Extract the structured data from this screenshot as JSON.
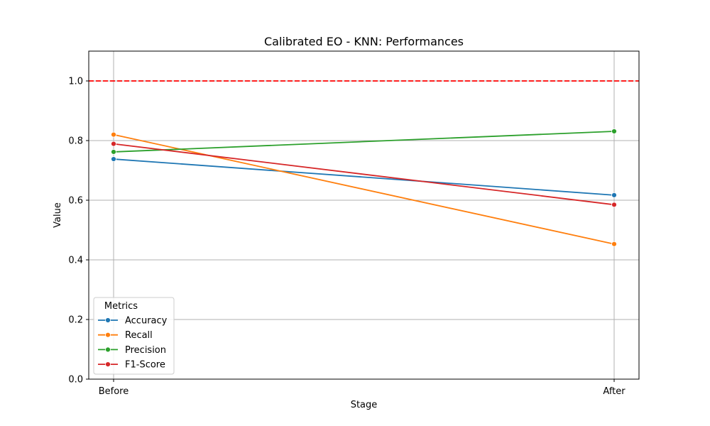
{
  "chart_data": {
    "type": "line",
    "title": "Calibrated EO - KNN: Performances",
    "xlabel": "Stage",
    "ylabel": "Value",
    "categories": [
      "Before",
      "After"
    ],
    "ylim": [
      0,
      1.1
    ],
    "yticks": [
      0.0,
      0.2,
      0.4,
      0.6,
      0.8,
      1.0
    ],
    "ytick_labels": [
      "0.0",
      "0.2",
      "0.4",
      "0.6",
      "0.8",
      "1.0"
    ],
    "grid": true,
    "reference_line": {
      "y": 1.0,
      "color": "#ff0000",
      "style": "dashed"
    },
    "legend": {
      "title": "Metrics",
      "placement": "lower-left"
    },
    "series": [
      {
        "name": "Accuracy",
        "values": [
          0.738,
          0.617
        ],
        "color": "#1f77b4"
      },
      {
        "name": "Recall",
        "values": [
          0.82,
          0.453
        ],
        "color": "#ff7f0e"
      },
      {
        "name": "Precision",
        "values": [
          0.762,
          0.831
        ],
        "color": "#2ca02c"
      },
      {
        "name": "F1-Score",
        "values": [
          0.789,
          0.585
        ],
        "color": "#d62728"
      }
    ]
  }
}
